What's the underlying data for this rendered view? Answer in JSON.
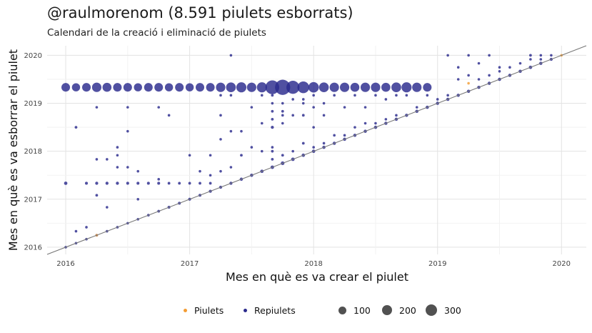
{
  "title": "@raulmorenom (8.591 piulets esborrats)",
  "subtitle": "Calendari de la creació i eliminació de piulets",
  "chart_data": {
    "type": "scatter",
    "xlabel": "Mes en què es va crear el piulet",
    "ylabel": "Mes en què es va esborrar el piulet",
    "xlim": [
      2015.85,
      2020.2
    ],
    "ylim": [
      2015.85,
      2020.2
    ],
    "x_ticks": [
      "2016",
      "2017",
      "2018",
      "2019",
      "2020"
    ],
    "y_ticks": [
      "2016",
      "2017",
      "2018",
      "2019",
      "2020"
    ],
    "grid": true,
    "reference_line": "y = x",
    "legend_position": "bottom",
    "colors": {
      "Piulets": "#f39c33",
      "Repiulets": "#2a2a8c",
      "size_legend": "#333333",
      "reference_line": "#777777"
    },
    "color_legend": [
      "Piulets",
      "Repiulets"
    ],
    "size_legend": [
      {
        "label": "100",
        "value": 100
      },
      {
        "label": "200",
        "value": 200
      },
      {
        "label": "300",
        "value": 300
      }
    ],
    "series": [
      {
        "name": "Repiulets",
        "points": [
          [
            2016.0,
            2016.0,
            3
          ],
          [
            2016.083,
            2016.083,
            3
          ],
          [
            2016.167,
            2016.167,
            3
          ],
          [
            2016.25,
            2016.25,
            3
          ],
          [
            2016.333,
            2016.333,
            3
          ],
          [
            2016.417,
            2016.417,
            3
          ],
          [
            2016.5,
            2016.5,
            3
          ],
          [
            2016.583,
            2016.583,
            3
          ],
          [
            2016.667,
            2016.667,
            4
          ],
          [
            2016.75,
            2016.75,
            4
          ],
          [
            2016.833,
            2016.833,
            5
          ],
          [
            2016.917,
            2016.917,
            5
          ],
          [
            2017.0,
            2017.0,
            5
          ],
          [
            2017.083,
            2017.083,
            5
          ],
          [
            2017.167,
            2017.167,
            6
          ],
          [
            2017.25,
            2017.25,
            6
          ],
          [
            2017.333,
            2017.333,
            6
          ],
          [
            2017.417,
            2017.417,
            7
          ],
          [
            2017.5,
            2017.5,
            7
          ],
          [
            2017.583,
            2017.583,
            8
          ],
          [
            2017.667,
            2017.667,
            9
          ],
          [
            2017.75,
            2017.75,
            10
          ],
          [
            2017.833,
            2017.833,
            9
          ],
          [
            2017.917,
            2017.917,
            8
          ],
          [
            2018.0,
            2018.0,
            8
          ],
          [
            2018.083,
            2018.083,
            7
          ],
          [
            2018.167,
            2018.167,
            7
          ],
          [
            2018.25,
            2018.25,
            7
          ],
          [
            2018.333,
            2018.333,
            7
          ],
          [
            2018.417,
            2018.417,
            7
          ],
          [
            2018.5,
            2018.5,
            7
          ],
          [
            2018.583,
            2018.583,
            7
          ],
          [
            2018.667,
            2018.667,
            7
          ],
          [
            2018.75,
            2018.75,
            7
          ],
          [
            2018.833,
            2018.833,
            7
          ],
          [
            2018.917,
            2018.917,
            7
          ],
          [
            2019.0,
            2019.0,
            7
          ],
          [
            2019.083,
            2019.083,
            7
          ],
          [
            2019.167,
            2019.167,
            7
          ],
          [
            2019.25,
            2019.25,
            7
          ],
          [
            2019.333,
            2019.333,
            7
          ],
          [
            2019.417,
            2019.417,
            7
          ],
          [
            2019.5,
            2019.5,
            7
          ],
          [
            2019.583,
            2019.583,
            7
          ],
          [
            2019.667,
            2019.667,
            7
          ],
          [
            2019.75,
            2019.75,
            8
          ],
          [
            2019.833,
            2019.833,
            7
          ],
          [
            2019.917,
            2019.917,
            6
          ],
          [
            2016.0,
            2019.333,
            90
          ],
          [
            2016.083,
            2019.333,
            80
          ],
          [
            2016.167,
            2019.333,
            90
          ],
          [
            2016.25,
            2019.333,
            110
          ],
          [
            2016.333,
            2019.333,
            100
          ],
          [
            2016.417,
            2019.333,
            90
          ],
          [
            2016.5,
            2019.333,
            90
          ],
          [
            2016.583,
            2019.333,
            80
          ],
          [
            2016.667,
            2019.333,
            90
          ],
          [
            2016.75,
            2019.333,
            90
          ],
          [
            2016.833,
            2019.333,
            80
          ],
          [
            2016.917,
            2019.333,
            90
          ],
          [
            2017.0,
            2019.333,
            80
          ],
          [
            2017.083,
            2019.333,
            90
          ],
          [
            2017.167,
            2019.333,
            90
          ],
          [
            2017.25,
            2019.333,
            110
          ],
          [
            2017.333,
            2019.333,
            120
          ],
          [
            2017.417,
            2019.333,
            130
          ],
          [
            2017.5,
            2019.333,
            110
          ],
          [
            2017.583,
            2019.333,
            130
          ],
          [
            2017.667,
            2019.333,
            260
          ],
          [
            2017.75,
            2019.333,
            320
          ],
          [
            2017.833,
            2019.333,
            230
          ],
          [
            2017.917,
            2019.333,
            180
          ],
          [
            2018.0,
            2019.333,
            140
          ],
          [
            2018.083,
            2019.333,
            120
          ],
          [
            2018.167,
            2019.333,
            110
          ],
          [
            2018.25,
            2019.333,
            110
          ],
          [
            2018.333,
            2019.333,
            100
          ],
          [
            2018.417,
            2019.333,
            110
          ],
          [
            2018.5,
            2019.333,
            110
          ],
          [
            2018.583,
            2019.333,
            100
          ],
          [
            2018.667,
            2019.333,
            120
          ],
          [
            2018.75,
            2019.333,
            130
          ],
          [
            2018.833,
            2019.333,
            110
          ],
          [
            2018.917,
            2019.333,
            90
          ],
          [
            2016.0,
            2017.333,
            8
          ],
          [
            2016.083,
            2016.333,
            3
          ],
          [
            2016.083,
            2018.5,
            4
          ],
          [
            2016.167,
            2016.417,
            3
          ],
          [
            2016.167,
            2017.333,
            5
          ],
          [
            2016.25,
            2017.333,
            6
          ],
          [
            2016.25,
            2017.083,
            4
          ],
          [
            2016.25,
            2018.917,
            3
          ],
          [
            2016.25,
            2017.833,
            3
          ],
          [
            2016.333,
            2017.333,
            6
          ],
          [
            2016.333,
            2016.833,
            3
          ],
          [
            2016.333,
            2017.833,
            3
          ],
          [
            2016.417,
            2017.333,
            6
          ],
          [
            2016.417,
            2017.667,
            3
          ],
          [
            2016.417,
            2018.083,
            3
          ],
          [
            2016.417,
            2017.917,
            3
          ],
          [
            2016.5,
            2017.333,
            5
          ],
          [
            2016.5,
            2018.917,
            3
          ],
          [
            2016.5,
            2018.417,
            3
          ],
          [
            2016.5,
            2017.667,
            3
          ],
          [
            2016.583,
            2017.333,
            5
          ],
          [
            2016.583,
            2017.0,
            3
          ],
          [
            2016.583,
            2017.583,
            3
          ],
          [
            2016.667,
            2017.333,
            5
          ],
          [
            2016.75,
            2017.333,
            5
          ],
          [
            2016.75,
            2018.917,
            3
          ],
          [
            2016.75,
            2017.417,
            3
          ],
          [
            2016.833,
            2017.333,
            4
          ],
          [
            2016.833,
            2018.75,
            3
          ],
          [
            2016.917,
            2017.333,
            4
          ],
          [
            2017.0,
            2017.333,
            4
          ],
          [
            2017.0,
            2017.917,
            3
          ],
          [
            2017.083,
            2017.333,
            4
          ],
          [
            2017.083,
            2017.583,
            3
          ],
          [
            2017.167,
            2017.333,
            4
          ],
          [
            2017.167,
            2017.917,
            3
          ],
          [
            2017.167,
            2017.5,
            3
          ],
          [
            2017.25,
            2017.583,
            3
          ],
          [
            2017.25,
            2018.25,
            3
          ],
          [
            2017.25,
            2018.75,
            3
          ],
          [
            2017.25,
            2019.167,
            3
          ],
          [
            2017.333,
            2020.0,
            3
          ],
          [
            2017.333,
            2017.667,
            3
          ],
          [
            2017.333,
            2018.417,
            3
          ],
          [
            2017.333,
            2019.167,
            3
          ],
          [
            2017.417,
            2017.917,
            4
          ],
          [
            2017.417,
            2018.417,
            3
          ],
          [
            2017.5,
            2018.083,
            3
          ],
          [
            2017.5,
            2018.917,
            3
          ],
          [
            2017.583,
            2018.0,
            3
          ],
          [
            2017.583,
            2018.583,
            3
          ],
          [
            2017.583,
            2019.167,
            3
          ],
          [
            2017.667,
            2017.833,
            4
          ],
          [
            2017.667,
            2018.0,
            4
          ],
          [
            2017.667,
            2018.083,
            3
          ],
          [
            2017.667,
            2018.5,
            6
          ],
          [
            2017.667,
            2018.667,
            4
          ],
          [
            2017.667,
            2018.833,
            4
          ],
          [
            2017.667,
            2019.0,
            3
          ],
          [
            2017.667,
            2019.167,
            4
          ],
          [
            2017.75,
            2017.917,
            4
          ],
          [
            2017.75,
            2018.583,
            3
          ],
          [
            2017.75,
            2018.75,
            3
          ],
          [
            2017.75,
            2018.833,
            4
          ],
          [
            2017.75,
            2019.0,
            3
          ],
          [
            2017.833,
            2018.0,
            3
          ],
          [
            2017.833,
            2018.75,
            3
          ],
          [
            2017.833,
            2019.083,
            3
          ],
          [
            2017.917,
            2018.167,
            4
          ],
          [
            2017.917,
            2018.75,
            4
          ],
          [
            2017.917,
            2019.0,
            3
          ],
          [
            2017.917,
            2019.083,
            3
          ],
          [
            2018.0,
            2018.083,
            3
          ],
          [
            2018.0,
            2018.5,
            3
          ],
          [
            2018.0,
            2018.917,
            3
          ],
          [
            2018.0,
            2019.167,
            3
          ],
          [
            2018.083,
            2018.167,
            3
          ],
          [
            2018.083,
            2018.75,
            3
          ],
          [
            2018.083,
            2019.0,
            3
          ],
          [
            2018.167,
            2018.333,
            3
          ],
          [
            2018.167,
            2019.167,
            3
          ],
          [
            2018.25,
            2018.333,
            3
          ],
          [
            2018.25,
            2018.917,
            3
          ],
          [
            2018.333,
            2018.5,
            3
          ],
          [
            2018.333,
            2019.167,
            3
          ],
          [
            2018.417,
            2018.583,
            3
          ],
          [
            2018.417,
            2018.917,
            3
          ],
          [
            2018.5,
            2018.583,
            3
          ],
          [
            2018.5,
            2019.167,
            3
          ],
          [
            2018.583,
            2018.667,
            3
          ],
          [
            2018.583,
            2019.083,
            3
          ],
          [
            2018.667,
            2018.75,
            3
          ],
          [
            2018.667,
            2019.167,
            3
          ],
          [
            2018.75,
            2019.167,
            3
          ],
          [
            2018.833,
            2018.917,
            3
          ],
          [
            2018.917,
            2019.167,
            3
          ],
          [
            2019.0,
            2019.083,
            3
          ],
          [
            2019.083,
            2019.167,
            3
          ],
          [
            2019.083,
            2020.0,
            3
          ],
          [
            2019.167,
            2019.5,
            3
          ],
          [
            2019.167,
            2019.75,
            3
          ],
          [
            2019.25,
            2020.0,
            3
          ],
          [
            2019.25,
            2019.583,
            3
          ],
          [
            2019.333,
            2019.5,
            3
          ],
          [
            2019.333,
            2019.833,
            3
          ],
          [
            2019.417,
            2019.583,
            3
          ],
          [
            2019.417,
            2020.0,
            3
          ],
          [
            2019.5,
            2019.75,
            3
          ],
          [
            2019.5,
            2019.667,
            3
          ],
          [
            2019.583,
            2019.75,
            3
          ],
          [
            2019.667,
            2019.833,
            3
          ],
          [
            2019.75,
            2020.0,
            4
          ],
          [
            2019.75,
            2019.917,
            3
          ],
          [
            2019.833,
            2020.0,
            3
          ],
          [
            2019.833,
            2019.917,
            3
          ],
          [
            2019.917,
            2020.0,
            3
          ]
        ]
      },
      {
        "name": "Piulets",
        "points": [
          [
            2016.25,
            2016.25,
            3
          ],
          [
            2019.25,
            2019.417,
            3
          ],
          [
            2020.0,
            2020.0,
            3
          ]
        ]
      }
    ]
  }
}
